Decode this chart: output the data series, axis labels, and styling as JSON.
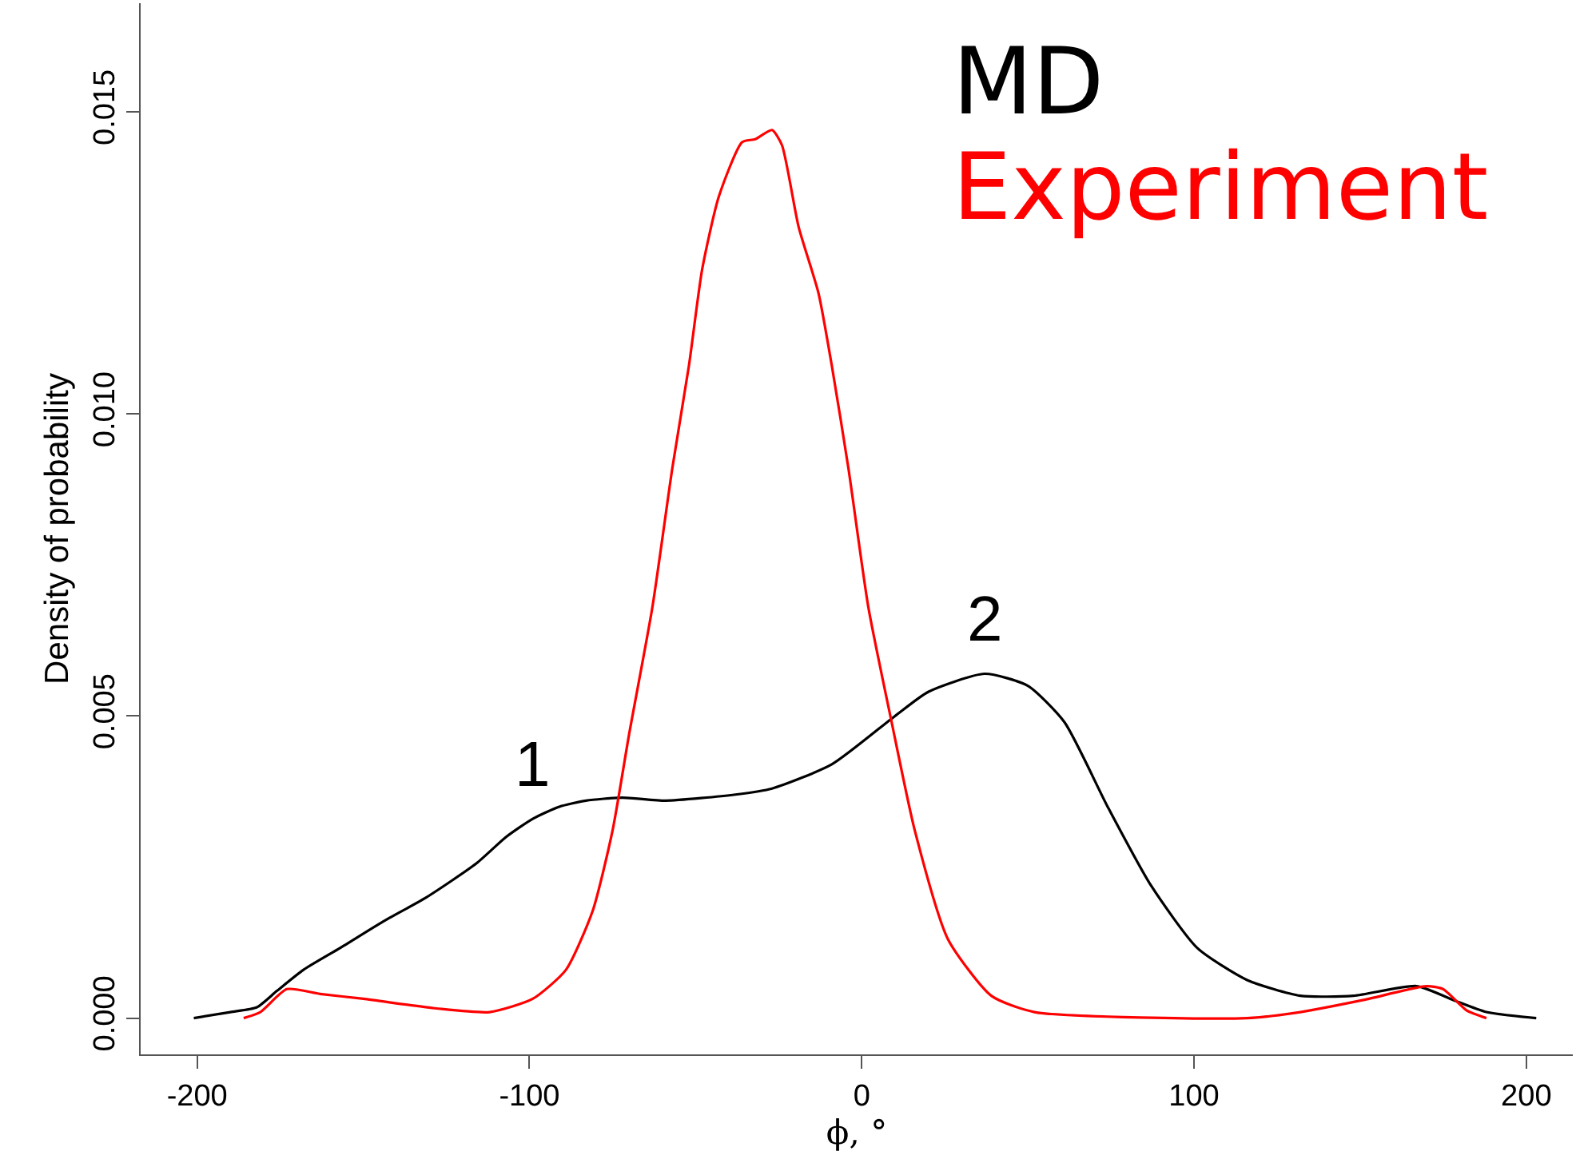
{
  "chart_data": {
    "type": "line",
    "xlabel": "ϕ, °",
    "ylabel": "Density of probability",
    "xlim": [
      -217,
      214
    ],
    "ylim": [
      -0.0006,
      0.0168
    ],
    "xticks": [
      -200,
      -100,
      0,
      100,
      200
    ],
    "yticks": [
      {
        "value": 0,
        "label": "0.000"
      },
      {
        "value": 0.005,
        "label": "0.005"
      },
      {
        "value": 0.01,
        "label": "0.010"
      },
      {
        "value": 0.015,
        "label": "0.015"
      }
    ],
    "legend": "top right",
    "marker": "none",
    "line_style": "solid",
    "series": [
      {
        "name": "MD",
        "color": "#000000",
        "x": [
          -201,
          -190,
          -182,
          -176,
          -168,
          -157,
          -144,
          -131,
          -116,
          -107,
          -99,
          -91,
          -83,
          -72,
          -59,
          -38,
          -27,
          -9,
          10,
          20,
          37,
          50,
          61,
          74,
          87,
          101,
          116,
          132,
          148,
          167,
          178,
          188,
          203
        ],
        "values": [
          0,
          0.0001,
          0.00018,
          0.00045,
          0.0008,
          0.00116,
          0.0016,
          0.002,
          0.00256,
          0.003,
          0.0033,
          0.0035,
          0.0036,
          0.00365,
          0.0036,
          0.0037,
          0.0038,
          0.0042,
          0.005,
          0.0054,
          0.0057,
          0.0055,
          0.0049,
          0.0035,
          0.0022,
          0.00116,
          0.00063,
          0.00037,
          0.00037,
          0.00053,
          0.0003,
          0.0001,
          0
        ]
      },
      {
        "name": "Experiment",
        "color": "#ff0000",
        "x": [
          -186,
          -181,
          -173,
          -163,
          -150,
          -128,
          -112,
          -99,
          -89,
          -81,
          -75,
          -70,
          -63,
          -57,
          -52,
          -48,
          -43,
          -36,
          -32,
          -27,
          -24,
          -19,
          -13,
          -9,
          -4,
          2,
          9,
          16,
          26,
          39,
          52,
          116,
          132,
          151,
          170,
          175,
          182,
          188
        ],
        "values": [
          0,
          0.0001,
          0.00048,
          0.0004,
          0.00032,
          0.00016,
          0.0001,
          0.00032,
          0.0008,
          0.00177,
          0.0031,
          0.0047,
          0.0068,
          0.0091,
          0.0108,
          0.0124,
          0.0136,
          0.0145,
          0.01455,
          0.0147,
          0.01445,
          0.0131,
          0.012,
          0.0108,
          0.0091,
          0.0068,
          0.0049,
          0.0031,
          0.0013,
          0.00037,
          0.0001,
          0,
          0.0001,
          0.0003,
          0.00053,
          0.00048,
          0.00013,
          0
        ]
      }
    ],
    "annotations": [
      {
        "text": "1",
        "x": -99,
        "y": 0.0033
      },
      {
        "text": "2",
        "x": 37,
        "y": 0.0057
      }
    ]
  }
}
